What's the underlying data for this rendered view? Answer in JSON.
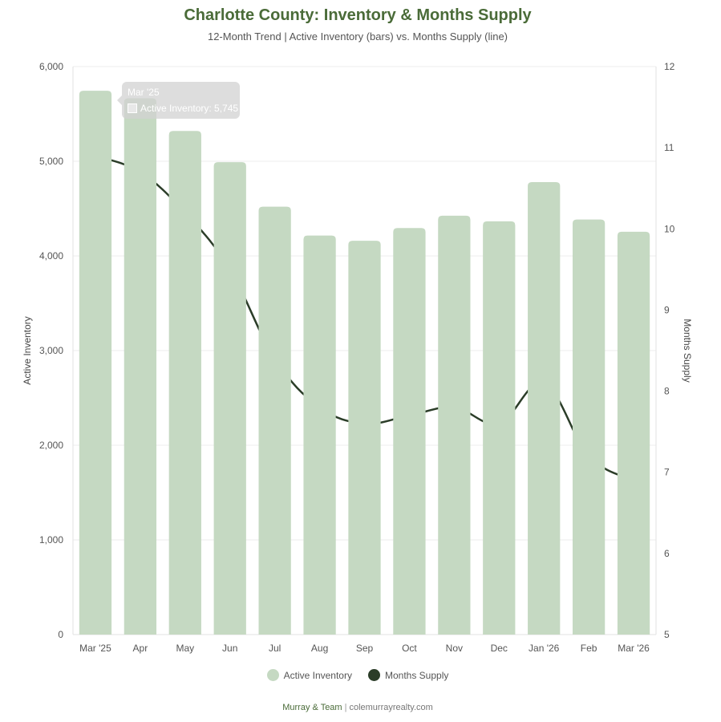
{
  "chart_data": {
    "type": "bar",
    "title": "Charlotte County: Inventory & Months Supply",
    "subtitle": "12-Month Trend | Active Inventory (bars) vs. Months Supply (line)",
    "categories": [
      "Mar '25",
      "Apr",
      "May",
      "Jun",
      "Jul",
      "Aug",
      "Sep",
      "Oct",
      "Nov",
      "Dec",
      "Jan '26",
      "Feb",
      "Mar '26"
    ],
    "series": [
      {
        "name": "Active Inventory",
        "type": "bar",
        "axis": "left",
        "color": "#c5d9c2",
        "values": [
          5745,
          5665,
          5320,
          4990,
          4520,
          4215,
          4160,
          4295,
          4425,
          4365,
          4780,
          4385,
          4255
        ]
      },
      {
        "name": "Months Supply",
        "type": "line",
        "axis": "right",
        "color": "#2b3d28",
        "values": [
          10.9,
          10.7,
          10.2,
          9.5,
          8.4,
          7.8,
          7.6,
          7.7,
          7.8,
          7.6,
          8.1,
          7.2,
          6.9
        ]
      }
    ],
    "ylabel": "Active Inventory",
    "y2label": "Months Supply",
    "ylim": [
      0,
      6000
    ],
    "y2lim": [
      5,
      12
    ],
    "yticks": [
      "0",
      "1,000",
      "2,000",
      "3,000",
      "4,000",
      "5,000",
      "6,000"
    ],
    "y2ticks": [
      "5",
      "6",
      "7",
      "8",
      "9",
      "10",
      "11",
      "12"
    ],
    "grid": true,
    "legend": "bottom-center"
  },
  "legend": {
    "items": [
      "Active Inventory",
      "Months Supply"
    ]
  },
  "tooltip": {
    "title": "Mar '25",
    "row": "Active Inventory: 5,745"
  },
  "footer": {
    "brand": "Murray & Team",
    "separator": "|",
    "site": "colemurrayrealty.com"
  }
}
